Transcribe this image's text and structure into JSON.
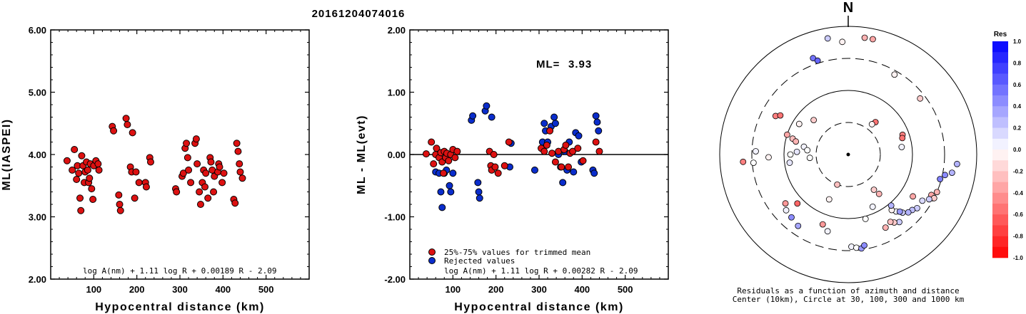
{
  "event_title": "20161204074016",
  "chart_data": [
    {
      "type": "scatter",
      "id": "left",
      "xlabel": "Hypocentral distance (km)",
      "ylabel": "ML(IASPEI)",
      "xlim": [
        0,
        600
      ],
      "ylim": [
        2.0,
        6.0
      ],
      "xticks": [
        "100",
        "200",
        "300",
        "400",
        "500"
      ],
      "yticks": [
        "2.00",
        "3.00",
        "4.00",
        "5.00",
        "6.00"
      ],
      "formula": "log A(nm) + 1.11 log R + 0.00189 R - 2.09",
      "color": "#dd1111",
      "points": [
        [
          38,
          3.9
        ],
        [
          50,
          3.75
        ],
        [
          55,
          4.08
        ],
        [
          60,
          3.6
        ],
        [
          62,
          3.82
        ],
        [
          65,
          3.7
        ],
        [
          68,
          3.3
        ],
        [
          70,
          3.1
        ],
        [
          72,
          3.98
        ],
        [
          75,
          3.82
        ],
        [
          78,
          3.55
        ],
        [
          80,
          3.72
        ],
        [
          83,
          3.88
        ],
        [
          86,
          3.75
        ],
        [
          88,
          3.55
        ],
        [
          90,
          3.62
        ],
        [
          92,
          3.85
        ],
        [
          95,
          3.45
        ],
        [
          98,
          3.28
        ],
        [
          100,
          3.82
        ],
        [
          105,
          3.9
        ],
        [
          110,
          3.85
        ],
        [
          112,
          3.75
        ],
        [
          143,
          4.45
        ],
        [
          146,
          4.38
        ],
        [
          158,
          3.35
        ],
        [
          160,
          3.2
        ],
        [
          162,
          3.1
        ],
        [
          175,
          4.58
        ],
        [
          178,
          4.48
        ],
        [
          185,
          3.8
        ],
        [
          188,
          3.72
        ],
        [
          190,
          4.35
        ],
        [
          195,
          3.3
        ],
        [
          198,
          3.72
        ],
        [
          205,
          3.55
        ],
        [
          220,
          3.55
        ],
        [
          222,
          3.48
        ],
        [
          230,
          3.95
        ],
        [
          232,
          3.88
        ],
        [
          290,
          3.45
        ],
        [
          292,
          3.4
        ],
        [
          305,
          3.65
        ],
        [
          308,
          3.7
        ],
        [
          312,
          4.1
        ],
        [
          315,
          4.18
        ],
        [
          318,
          3.95
        ],
        [
          320,
          3.75
        ],
        [
          325,
          3.55
        ],
        [
          335,
          4.18
        ],
        [
          338,
          4.25
        ],
        [
          340,
          3.85
        ],
        [
          345,
          3.4
        ],
        [
          348,
          3.2
        ],
        [
          352,
          3.55
        ],
        [
          355,
          3.75
        ],
        [
          358,
          3.48
        ],
        [
          360,
          3.7
        ],
        [
          365,
          3.3
        ],
        [
          370,
          3.95
        ],
        [
          372,
          3.88
        ],
        [
          375,
          3.75
        ],
        [
          378,
          3.4
        ],
        [
          380,
          3.65
        ],
        [
          388,
          3.72
        ],
        [
          390,
          3.85
        ],
        [
          392,
          3.8
        ],
        [
          398,
          3.55
        ],
        [
          402,
          3.7
        ],
        [
          425,
          3.28
        ],
        [
          428,
          3.22
        ],
        [
          432,
          4.18
        ],
        [
          435,
          4.05
        ],
        [
          438,
          3.85
        ],
        [
          440,
          3.72
        ],
        [
          445,
          3.62
        ]
      ]
    },
    {
      "type": "scatter",
      "id": "middle",
      "xlabel": "Hypocentral distance (km)",
      "ylabel": "ML - ML(evt)",
      "xlim": [
        0,
        600
      ],
      "ylim": [
        -2.0,
        2.0
      ],
      "xticks": [
        "100",
        "200",
        "300",
        "400",
        "500"
      ],
      "yticks": [
        "-2.00",
        "-1.00",
        "0.00",
        "1.00",
        "2.00"
      ],
      "ml_label": "ML=",
      "ml_value": "3.93",
      "formula": "log A(nm) + 1.11 log R + 0.00282 R - 2.09",
      "legend": [
        {
          "label": "25%-75% values for trimmed mean",
          "color": "#dd1111"
        },
        {
          "label": "Rejected values",
          "color": "#0a2dcc"
        }
      ],
      "accepted": [
        [
          38,
          0.01
        ],
        [
          50,
          0.2
        ],
        [
          55,
          -0.15
        ],
        [
          60,
          0.0
        ],
        [
          62,
          0.1
        ],
        [
          68,
          -0.05
        ],
        [
          72,
          0.03
        ],
        [
          75,
          -0.12
        ],
        [
          78,
          -0.3
        ],
        [
          80,
          0.05
        ],
        [
          83,
          -0.05
        ],
        [
          86,
          0.02
        ],
        [
          90,
          -0.1
        ],
        [
          95,
          0.0
        ],
        [
          100,
          0.08
        ],
        [
          105,
          -0.05
        ],
        [
          110,
          0.05
        ],
        [
          185,
          0.05
        ],
        [
          188,
          -0.18
        ],
        [
          190,
          -0.25
        ],
        [
          195,
          0.0
        ],
        [
          198,
          -0.2
        ],
        [
          205,
          -0.3
        ],
        [
          220,
          -0.18
        ],
        [
          230,
          0.2
        ],
        [
          305,
          0.1
        ],
        [
          312,
          0.05
        ],
        [
          318,
          0.15
        ],
        [
          325,
          0.38
        ],
        [
          330,
          0.02
        ],
        [
          338,
          -0.12
        ],
        [
          345,
          0.05
        ],
        [
          352,
          -0.2
        ],
        [
          358,
          0.08
        ],
        [
          362,
          0.15
        ],
        [
          368,
          -0.2
        ],
        [
          372,
          0.02
        ],
        [
          378,
          0.05
        ],
        [
          390,
          0.1
        ],
        [
          402,
          -0.1
        ],
        [
          432,
          0.2
        ],
        [
          440,
          0.05
        ]
      ],
      "rejected": [
        [
          60,
          -0.28
        ],
        [
          68,
          -0.3
        ],
        [
          72,
          -0.6
        ],
        [
          75,
          -0.85
        ],
        [
          80,
          -0.3
        ],
        [
          85,
          -0.25
        ],
        [
          92,
          -0.5
        ],
        [
          95,
          -0.6
        ],
        [
          100,
          -0.3
        ],
        [
          143,
          0.55
        ],
        [
          146,
          0.62
        ],
        [
          158,
          -0.45
        ],
        [
          160,
          -0.6
        ],
        [
          162,
          -0.7
        ],
        [
          175,
          0.7
        ],
        [
          178,
          0.78
        ],
        [
          190,
          0.6
        ],
        [
          232,
          -0.2
        ],
        [
          235,
          0.18
        ],
        [
          290,
          -0.25
        ],
        [
          308,
          0.2
        ],
        [
          312,
          0.5
        ],
        [
          315,
          0.38
        ],
        [
          320,
          0.2
        ],
        [
          328,
          0.45
        ],
        [
          335,
          0.6
        ],
        [
          338,
          0.5
        ],
        [
          345,
          0.0
        ],
        [
          350,
          -0.2
        ],
        [
          355,
          -0.45
        ],
        [
          360,
          0.05
        ],
        [
          365,
          -0.25
        ],
        [
          370,
          0.2
        ],
        [
          380,
          -0.28
        ],
        [
          385,
          0.35
        ],
        [
          392,
          0.3
        ],
        [
          398,
          -0.12
        ],
        [
          425,
          -0.25
        ],
        [
          428,
          -0.3
        ],
        [
          432,
          0.62
        ],
        [
          435,
          0.52
        ],
        [
          438,
          0.38
        ]
      ]
    },
    {
      "type": "polar",
      "id": "polar",
      "north_label": "N",
      "caption_line1": "Residuals as a function of azimuth and distance",
      "caption_line2": "Center (10km), Circle at 30, 100, 300 and 1000 km",
      "colorbar_title": "Res",
      "colorbar_ticks": [
        "1.0",
        "0.8",
        "0.6",
        "0.4",
        "0.2",
        "0.0",
        "-0.2",
        "-0.4",
        "-0.6",
        "-0.8",
        "-1.0"
      ],
      "points": [
        [
          350,
          0.92,
          0.2
        ],
        [
          357,
          0.88,
          -0.05
        ],
        [
          8,
          0.92,
          -0.3
        ],
        [
          12,
          0.92,
          -0.35
        ],
        [
          340,
          0.8,
          0.55
        ],
        [
          342,
          0.77,
          0.6
        ],
        [
          30,
          0.72,
          -0.05
        ],
        [
          52,
          0.71,
          -0.2
        ],
        [
          298,
          0.64,
          -0.5
        ],
        [
          300,
          0.61,
          -0.55
        ],
        [
          288,
          0.5,
          -0.35
        ],
        [
          286,
          0.45,
          -0.25
        ],
        [
          284,
          0.42,
          -0.3
        ],
        [
          280,
          0.35,
          0.05
        ],
        [
          276,
          0.32,
          0.0
        ],
        [
          273,
          0.4,
          0.1
        ],
        [
          270,
          0.45,
          0.0
        ],
        [
          262,
          0.46,
          0.1
        ],
        [
          268,
          0.62,
          -0.05
        ],
        [
          265,
          0.74,
          0.0
        ],
        [
          266,
          0.82,
          -0.5
        ],
        [
          272,
          0.72,
          0.05
        ],
        [
          302,
          0.45,
          -0.05
        ],
        [
          315,
          0.38,
          -0.2
        ],
        [
          265,
          0.3,
          0.0
        ],
        [
          70,
          0.45,
          -0.5
        ],
        [
          73,
          0.44,
          -0.55
        ],
        [
          82,
          0.42,
          0.05
        ],
        [
          100,
          0.82,
          0.3
        ],
        [
          102,
          0.77,
          0.45
        ],
        [
          105,
          0.74,
          0.5
        ],
        [
          95,
          0.85,
          0.3
        ],
        [
          113,
          0.75,
          -0.3
        ],
        [
          116,
          0.72,
          -0.35
        ],
        [
          117,
          0.75,
          -0.2
        ],
        [
          119,
          0.72,
          0.2
        ],
        [
          122,
          0.68,
          0.15
        ],
        [
          128,
          0.68,
          0.2
        ],
        [
          131,
          0.66,
          0.25
        ],
        [
          134,
          0.65,
          0.3
        ],
        [
          137,
          0.62,
          0.2
        ],
        [
          140,
          0.58,
          0.05
        ],
        [
          142,
          0.55,
          -0.05
        ],
        [
          140,
          0.52,
          0.3
        ],
        [
          138,
          0.6,
          0.4
        ],
        [
          143,
          0.66,
          0.2
        ],
        [
          146,
          0.64,
          -0.2
        ],
        [
          148,
          0.62,
          -0.25
        ],
        [
          153,
          0.64,
          -0.3
        ],
        [
          123,
          0.6,
          -0.35
        ],
        [
          155,
          0.45,
          0.05
        ],
        [
          142,
          0.39,
          -0.3
        ],
        [
          144,
          0.34,
          -0.2
        ],
        [
          200,
          0.25,
          -0.25
        ],
        [
          165,
          0.52,
          0.0
        ],
        [
          178,
          0.72,
          0.05
        ],
        [
          175,
          0.73,
          0.0
        ],
        [
          172,
          0.74,
          0.4
        ],
        [
          170,
          0.72,
          0.45
        ],
        [
          195,
          0.62,
          0.05
        ],
        [
          200,
          0.58,
          -0.4
        ],
        [
          215,
          0.68,
          0.35
        ],
        [
          222,
          0.66,
          0.45
        ],
        [
          228,
          0.65,
          0.05
        ],
        [
          232,
          0.62,
          -0.4
        ],
        [
          226,
          0.55,
          -0.6
        ],
        [
          203,
          0.38,
          -0.05
        ],
        [
          40,
          0.33,
          -0.55
        ],
        [
          38,
          0.3,
          -0.05
        ]
      ]
    }
  ]
}
